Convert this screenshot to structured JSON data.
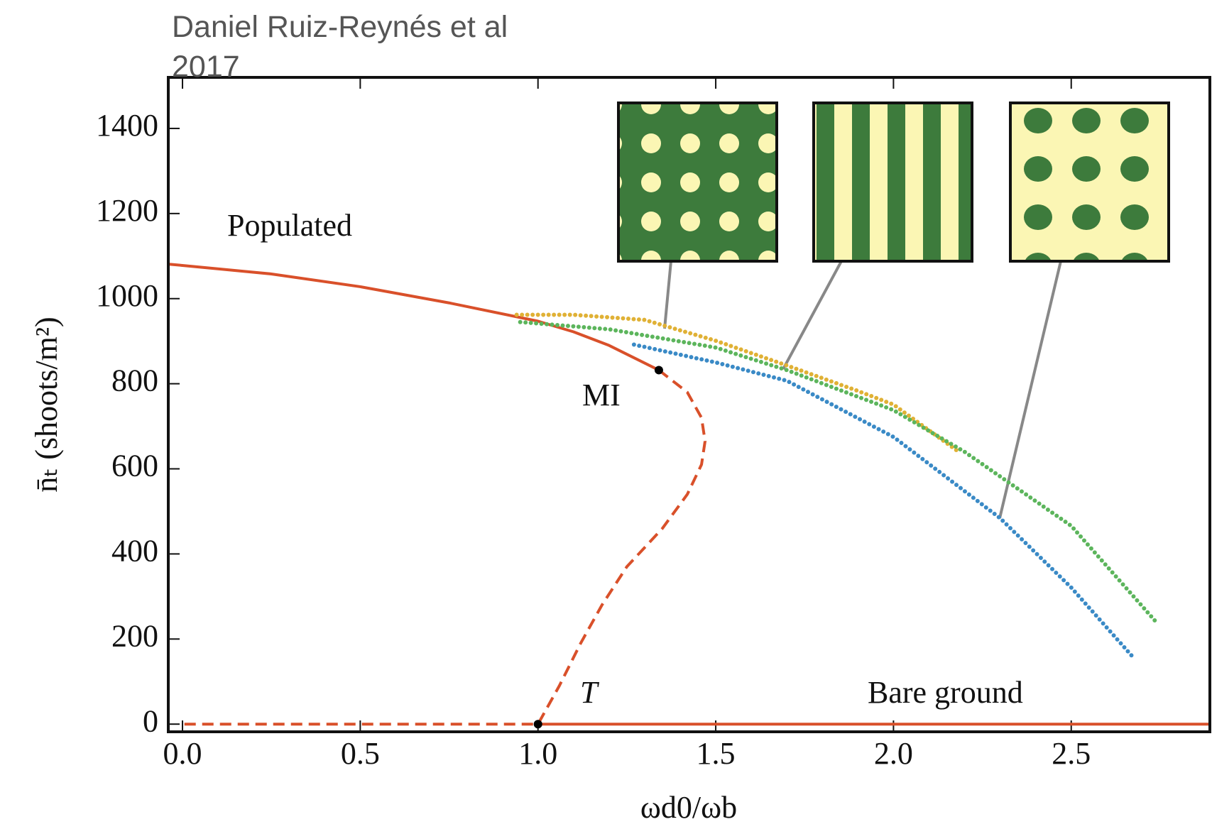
{
  "source": "Daniel Ruiz-Reynés et al 2017",
  "chart_data": {
    "type": "line",
    "x_label": "ωd0/ωb",
    "y_label": "n̄ₜ (shoots/m²)",
    "xlim": [
      -0.04,
      2.89
    ],
    "ylim": [
      -18,
      1520
    ],
    "xticks": [
      {
        "value": 0,
        "label": "0.0"
      },
      0.5,
      {
        "value": 1,
        "label": "1.0"
      },
      1.5,
      {
        "value": 2,
        "label": "2.0"
      },
      2.5
    ],
    "yticks": [
      0,
      200,
      400,
      600,
      800,
      1000,
      1200,
      1400
    ],
    "series": [
      {
        "color": "#d9502a",
        "style": "solid",
        "x": [
          -0.04,
          0,
          0.25,
          0.5,
          0.75,
          1.0,
          1.1,
          1.2,
          1.34
        ],
        "values": [
          1081,
          1078,
          1058,
          1028,
          990,
          947,
          922,
          890,
          832
        ]
      },
      {
        "color": "#d9502a",
        "style": "dashed",
        "x": [
          1.34,
          1.42,
          1.46,
          1.47,
          1.46,
          1.42,
          1.35,
          1.25,
          1.18,
          1.12,
          1.06,
          1.0,
          0.0
        ],
        "values": [
          832,
          780,
          720,
          665,
          610,
          540,
          460,
          370,
          280,
          190,
          90,
          0,
          0
        ]
      },
      {
        "color": "#d9502a",
        "style": "solid",
        "x": [
          1.0,
          2.89
        ],
        "values": [
          0,
          0
        ]
      },
      {
        "color": "#e0b135",
        "style": "dotted",
        "x": [
          0.94,
          1.1,
          1.3,
          1.5,
          1.7,
          1.9,
          2.0,
          2.18
        ],
        "values": [
          962,
          962,
          950,
          901,
          843,
          783,
          751,
          642
        ]
      },
      {
        "color": "#5cb55c",
        "style": "dotted",
        "x": [
          0.95,
          1.2,
          1.5,
          1.7,
          2.0,
          2.2,
          2.5,
          2.74
        ],
        "values": [
          945,
          928,
          885,
          832,
          738,
          640,
          466,
          239
        ]
      },
      {
        "color": "#3a8ac6",
        "style": "dotted",
        "x": [
          1.27,
          1.5,
          1.7,
          2.0,
          2.3,
          2.5,
          2.67
        ],
        "values": [
          892,
          850,
          807,
          675,
          484,
          321,
          161
        ]
      }
    ],
    "points": {
      "color": "#000000",
      "x": [
        1.34,
        1.0
      ],
      "values": [
        832,
        0
      ]
    },
    "annotations": [
      "Populated",
      "MI",
      "T",
      "Bare ground"
    ]
  }
}
